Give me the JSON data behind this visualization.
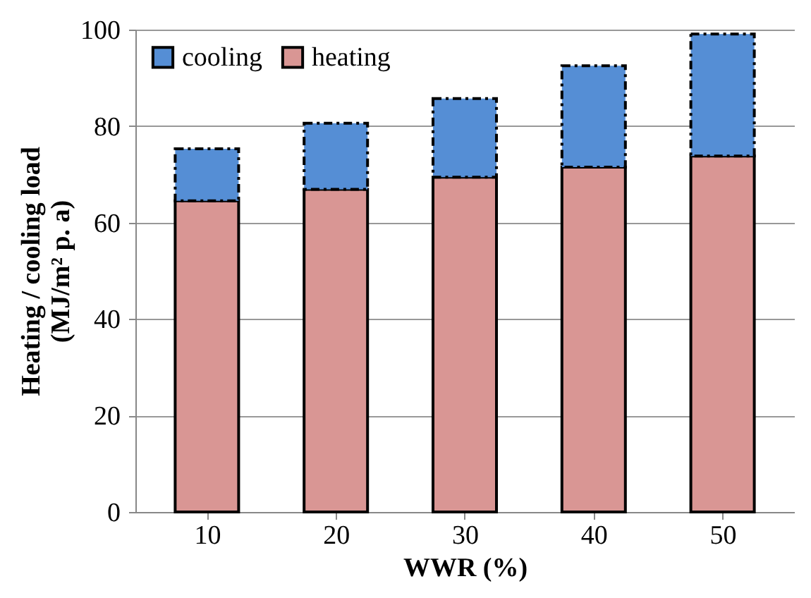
{
  "chart_data": {
    "type": "bar",
    "stacked": true,
    "xlabel": "WWR (%)",
    "ylabel": "Heating / cooling load\n(MJ/m² p. a)",
    "categories": [
      "10",
      "20",
      "30",
      "40",
      "50"
    ],
    "series": [
      {
        "name": "heating",
        "color": "#d99694",
        "line_style": "solid",
        "values": [
          64.5,
          66.9,
          69.4,
          71.5,
          73.8
        ]
      },
      {
        "name": "cooling",
        "color": "#558ed5",
        "line_style": "dashed",
        "values": [
          10.8,
          13.7,
          16.3,
          21.0,
          25.3
        ]
      }
    ],
    "ylim": [
      0,
      100
    ],
    "yticks": [
      0,
      20,
      40,
      60,
      80,
      100
    ],
    "grid": "y",
    "legend": "top left"
  }
}
